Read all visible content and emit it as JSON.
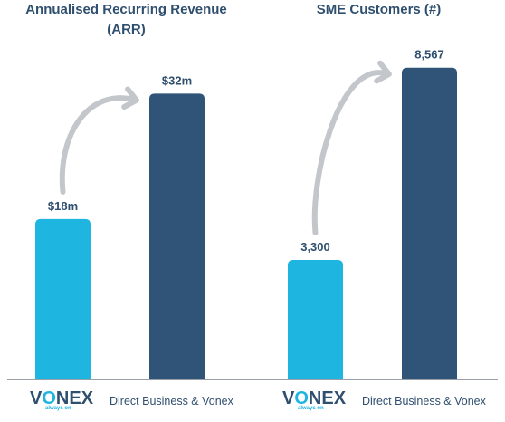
{
  "colors": {
    "bar_light": "#1fb5e1",
    "bar_dark": "#2f5478",
    "text_dark": "#2f4f6f",
    "arrow": "#c3c6cb",
    "axis": "#9aa0a6"
  },
  "chart_data": [
    {
      "type": "bar",
      "title": "Annualised Recurring Revenue\n(ARR)",
      "categories": [
        "",
        ""
      ],
      "values": [
        18,
        32
      ],
      "value_labels": [
        "$18m",
        "$32m"
      ],
      "bar_colors": [
        "#1fb5e1",
        "#2f5478"
      ],
      "ylim": [
        0,
        37.4
      ],
      "grid": false,
      "legend": "none",
      "annotation": "curved-arrow"
    },
    {
      "type": "bar",
      "title": "SME Customers (#)",
      "categories": [
        "",
        ""
      ],
      "values": [
        3300,
        8567
      ],
      "value_labels": [
        "3,300",
        "8,567"
      ],
      "bar_colors": [
        "#1fb5e1",
        "#2f5478"
      ],
      "ylim": [
        0,
        9180
      ],
      "grid": false,
      "legend": "none",
      "annotation": "curved-arrow"
    }
  ],
  "footers": [
    {
      "logo_text": "VONEX",
      "logo_tagline": "always on",
      "caption": "Direct Business & Vonex"
    },
    {
      "logo_text": "VONEX",
      "logo_tagline": "always on",
      "caption": "Direct Business & Vonex"
    }
  ]
}
